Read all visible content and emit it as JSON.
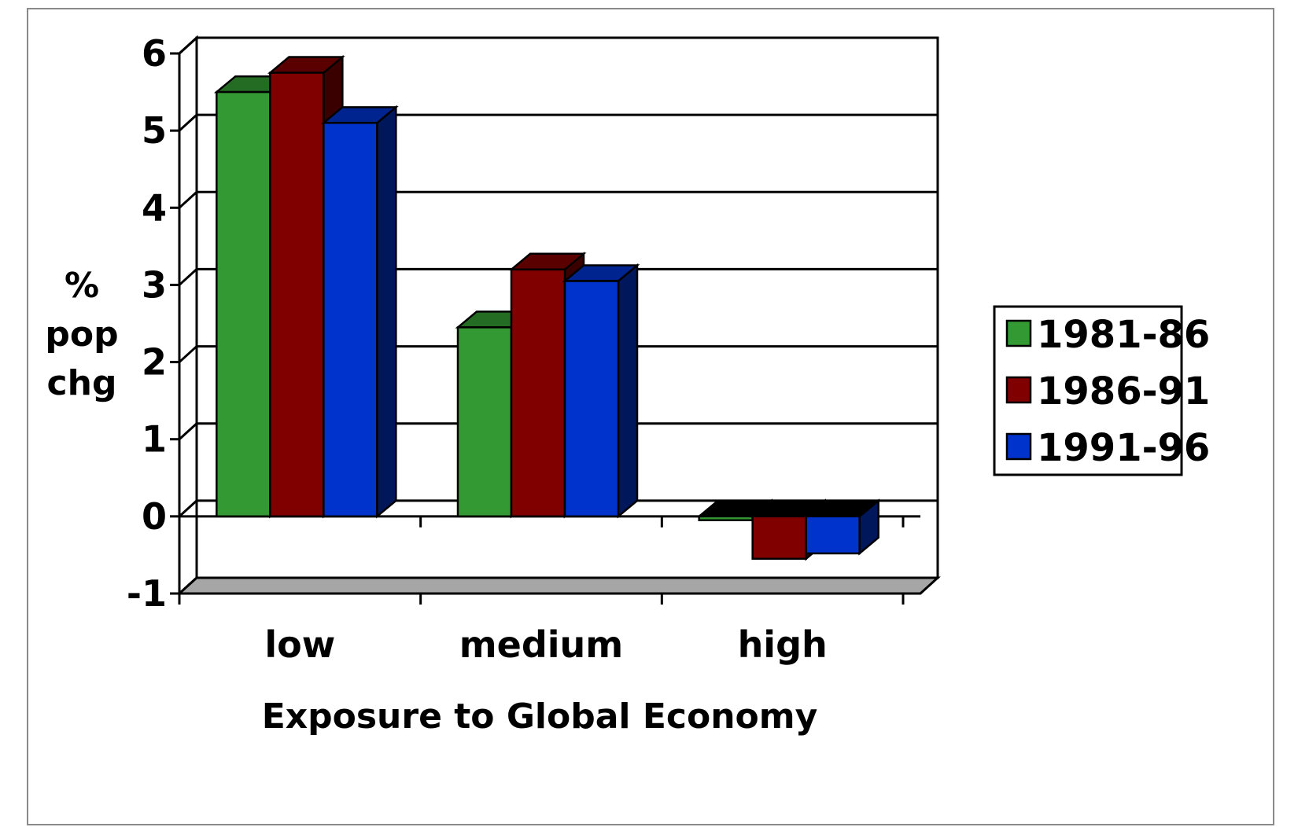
{
  "chart_data": {
    "type": "bar",
    "style": "3d-clustered-column",
    "categories": [
      "low",
      "medium",
      "high"
    ],
    "series": [
      {
        "name": "1981-86",
        "values": [
          5.5,
          2.45,
          -0.05
        ],
        "color": "#339933"
      },
      {
        "name": "1986-91",
        "values": [
          5.75,
          3.2,
          -0.55
        ],
        "color": "#800000"
      },
      {
        "name": "1991-96",
        "values": [
          5.1,
          3.05,
          -0.48
        ],
        "color": "#0033cc"
      }
    ],
    "title": "",
    "xlabel": "Exposure to Global Economy",
    "ylabel_lines": [
      "%",
      "pop",
      "chg"
    ],
    "ylim": [
      -1,
      6
    ],
    "yticks": [
      "-1",
      "0",
      "1",
      "2",
      "3",
      "4",
      "5",
      "6"
    ],
    "grid": true,
    "legend_position": "right",
    "floor_color": "#a6a6a6"
  }
}
